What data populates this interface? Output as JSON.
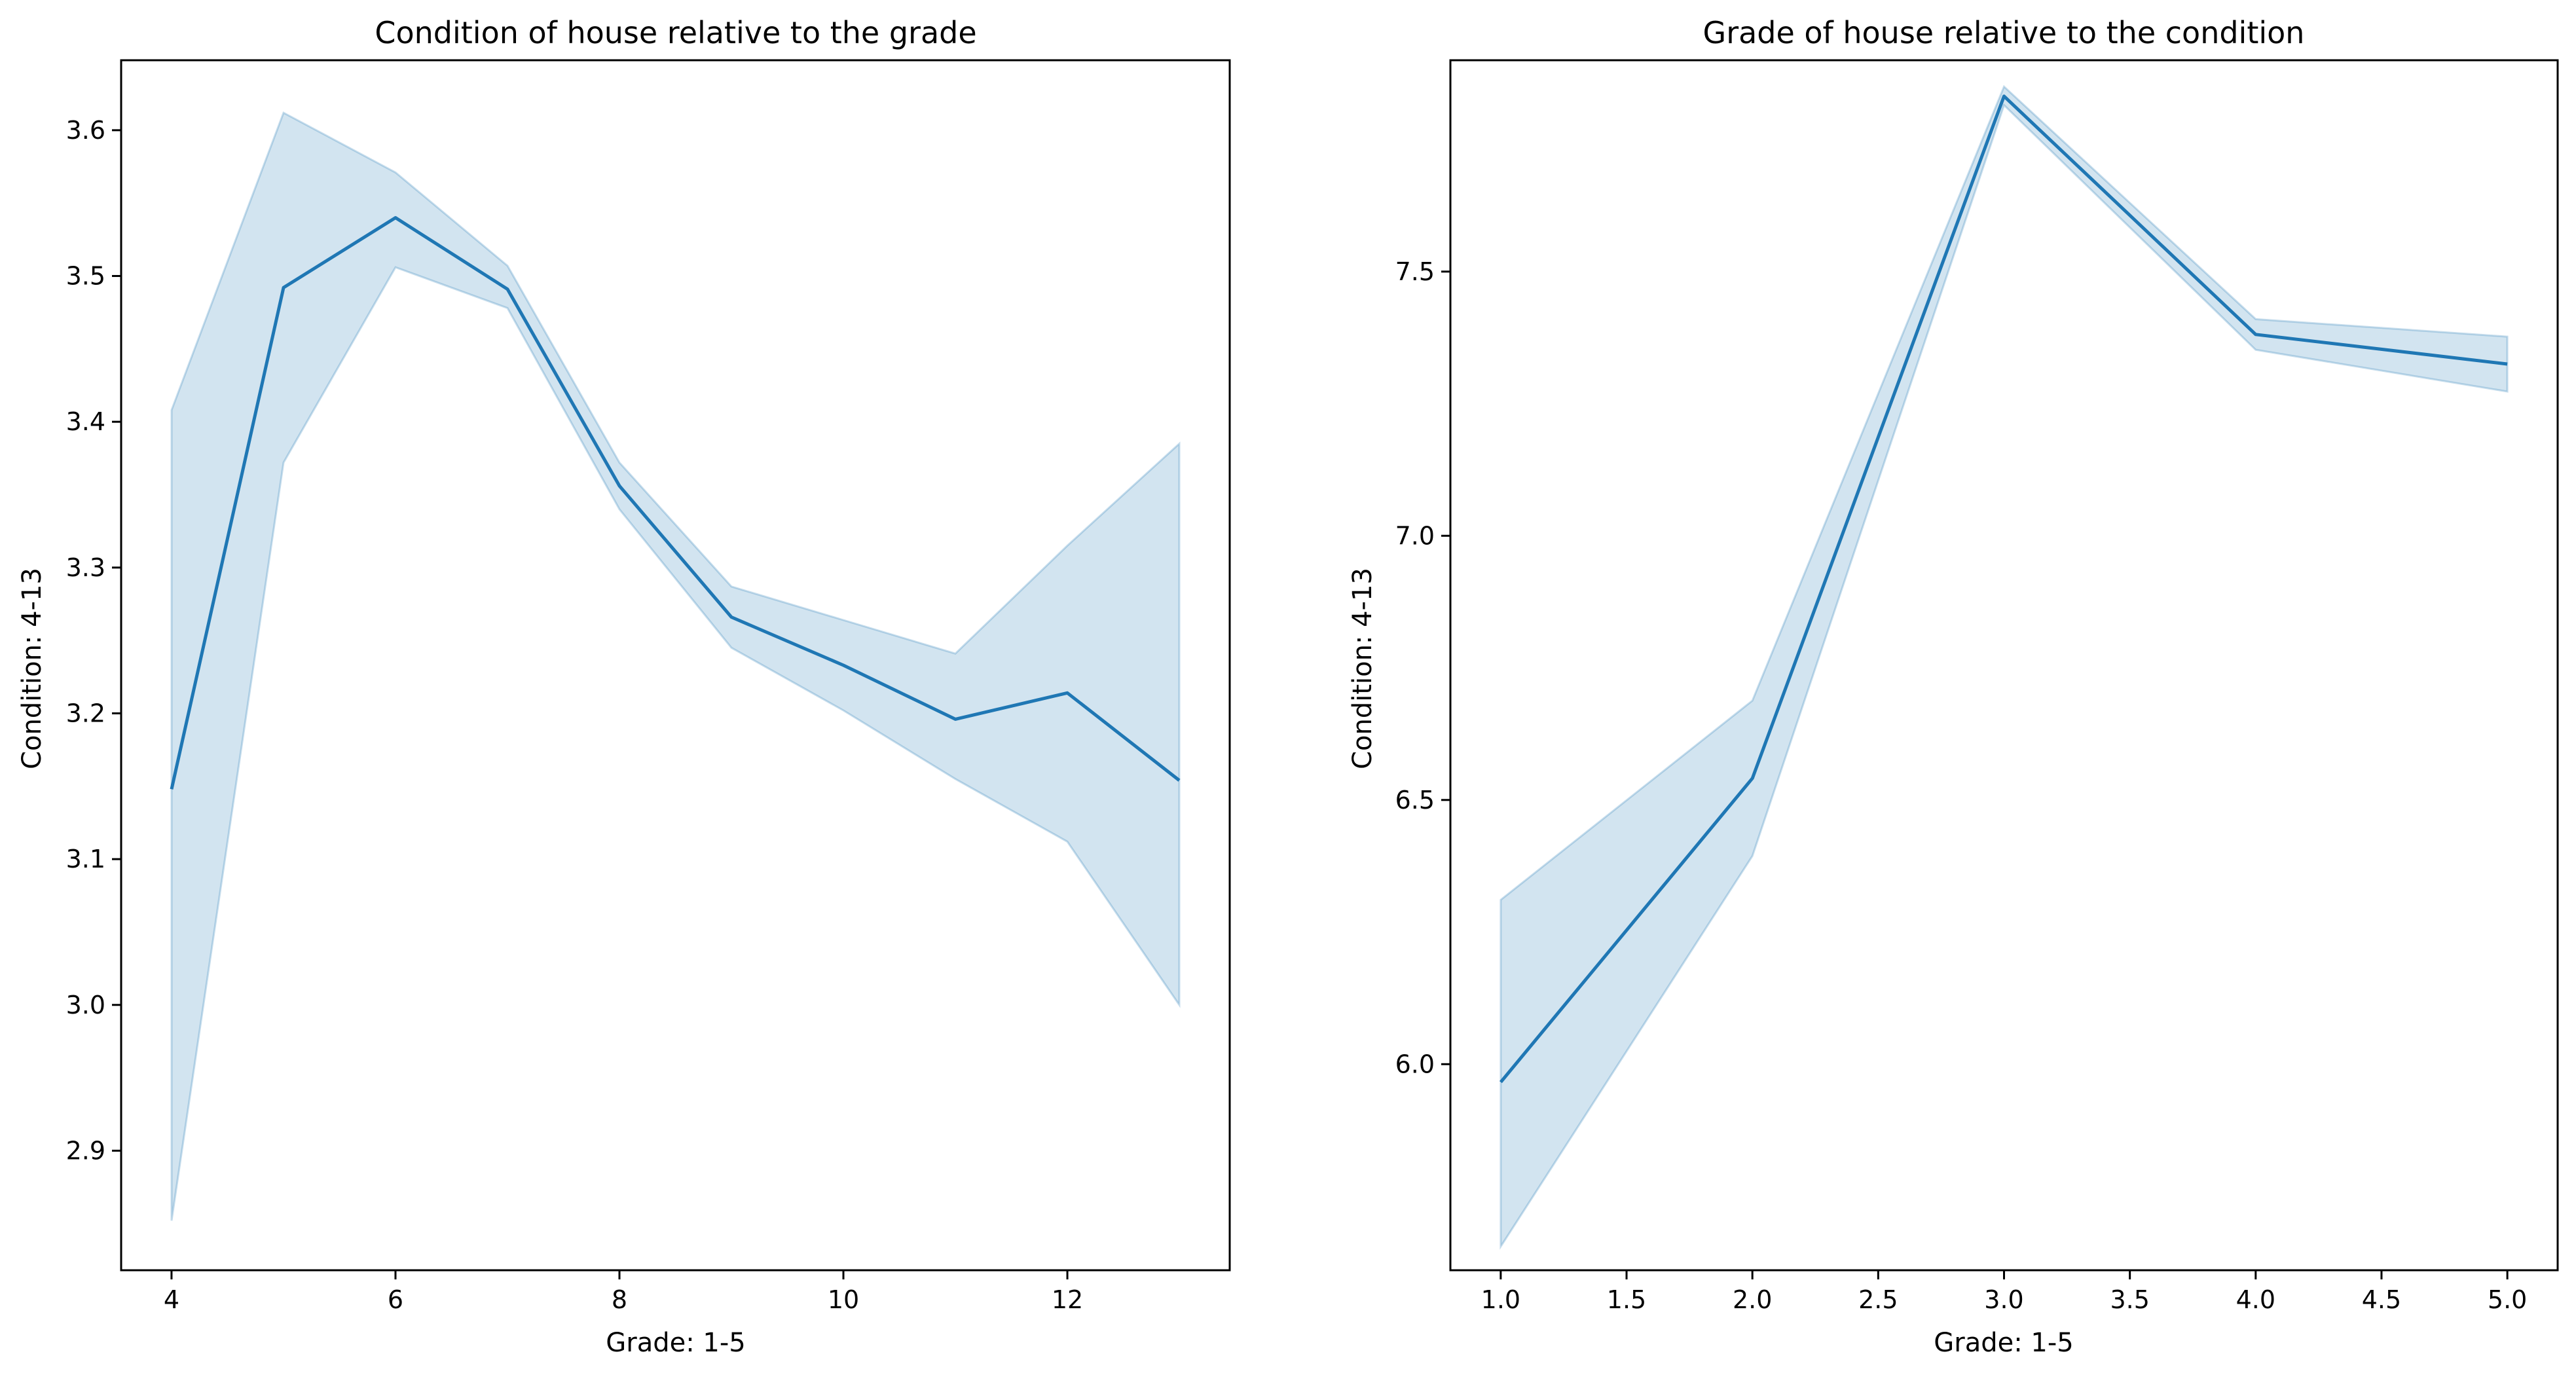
{
  "chart_data": [
    {
      "type": "line",
      "title": "Condition of house relative to the grade",
      "xlabel": "Grade: 1-5",
      "ylabel": "Condition: 4-13",
      "xlim": [
        3.55,
        13.45
      ],
      "ylim": [
        2.818,
        3.648
      ],
      "xticks": [
        4,
        6,
        8,
        10,
        12
      ],
      "xtick_labels": [
        "4",
        "6",
        "8",
        "10",
        "12"
      ],
      "yticks": [
        2.9,
        3.0,
        3.1,
        3.2,
        3.3,
        3.4,
        3.5,
        3.6
      ],
      "ytick_labels": [
        "2.9",
        "3.0",
        "3.1",
        "3.2",
        "3.3",
        "3.4",
        "3.5",
        "3.6"
      ],
      "grid": false,
      "color": "#1f77b4",
      "series": [
        {
          "x": [
            4,
            5,
            6,
            7,
            8,
            9,
            10,
            11,
            12,
            13
          ],
          "y": [
            3.148,
            3.492,
            3.54,
            3.491,
            3.356,
            3.266,
            3.233,
            3.196,
            3.214,
            3.154
          ],
          "ci_lower": [
            2.852,
            3.372,
            3.506,
            3.478,
            3.34,
            3.245,
            3.202,
            3.155,
            3.112,
            3.0
          ],
          "ci_upper": [
            3.408,
            3.612,
            3.571,
            3.507,
            3.372,
            3.287,
            3.264,
            3.241,
            3.315,
            3.385
          ]
        }
      ]
    },
    {
      "type": "line",
      "title": "Grade of house relative to the condition",
      "xlabel": "Grade: 1-5",
      "ylabel": "Condition: 4-13",
      "xlim": [
        0.8,
        5.2
      ],
      "ylim": [
        5.61,
        7.9
      ],
      "xticks": [
        1.0,
        1.5,
        2.0,
        2.5,
        3.0,
        3.5,
        4.0,
        4.5,
        5.0
      ],
      "xtick_labels": [
        "1.0",
        "1.5",
        "2.0",
        "2.5",
        "3.0",
        "3.5",
        "4.0",
        "4.5",
        "5.0"
      ],
      "yticks": [
        6.0,
        6.5,
        7.0,
        7.5
      ],
      "ytick_labels": [
        "6.0",
        "6.5",
        "7.0",
        "7.5"
      ],
      "grid": false,
      "color": "#1f77b4",
      "series": [
        {
          "x": [
            1,
            2,
            3,
            4,
            5
          ],
          "y": [
            5.966,
            6.541,
            7.832,
            7.381,
            7.325
          ],
          "ci_lower": [
            5.655,
            6.394,
            7.815,
            7.352,
            7.273
          ],
          "ci_upper": [
            6.311,
            6.688,
            7.85,
            7.41,
            7.377
          ]
        }
      ]
    }
  ]
}
